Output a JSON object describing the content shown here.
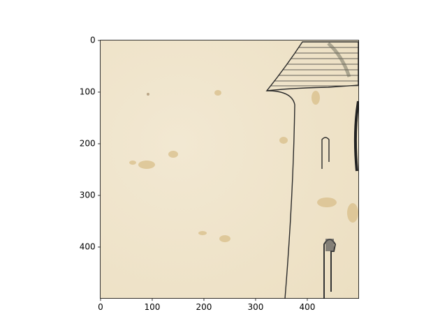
{
  "chart_data": {
    "type": "image",
    "xlim": [
      -0.5,
      499.5
    ],
    "ylim": [
      499.5,
      -0.5
    ],
    "xticks": [
      0,
      100,
      200,
      300,
      400
    ],
    "yticks": [
      0,
      100,
      200,
      300,
      400
    ]
  }
}
